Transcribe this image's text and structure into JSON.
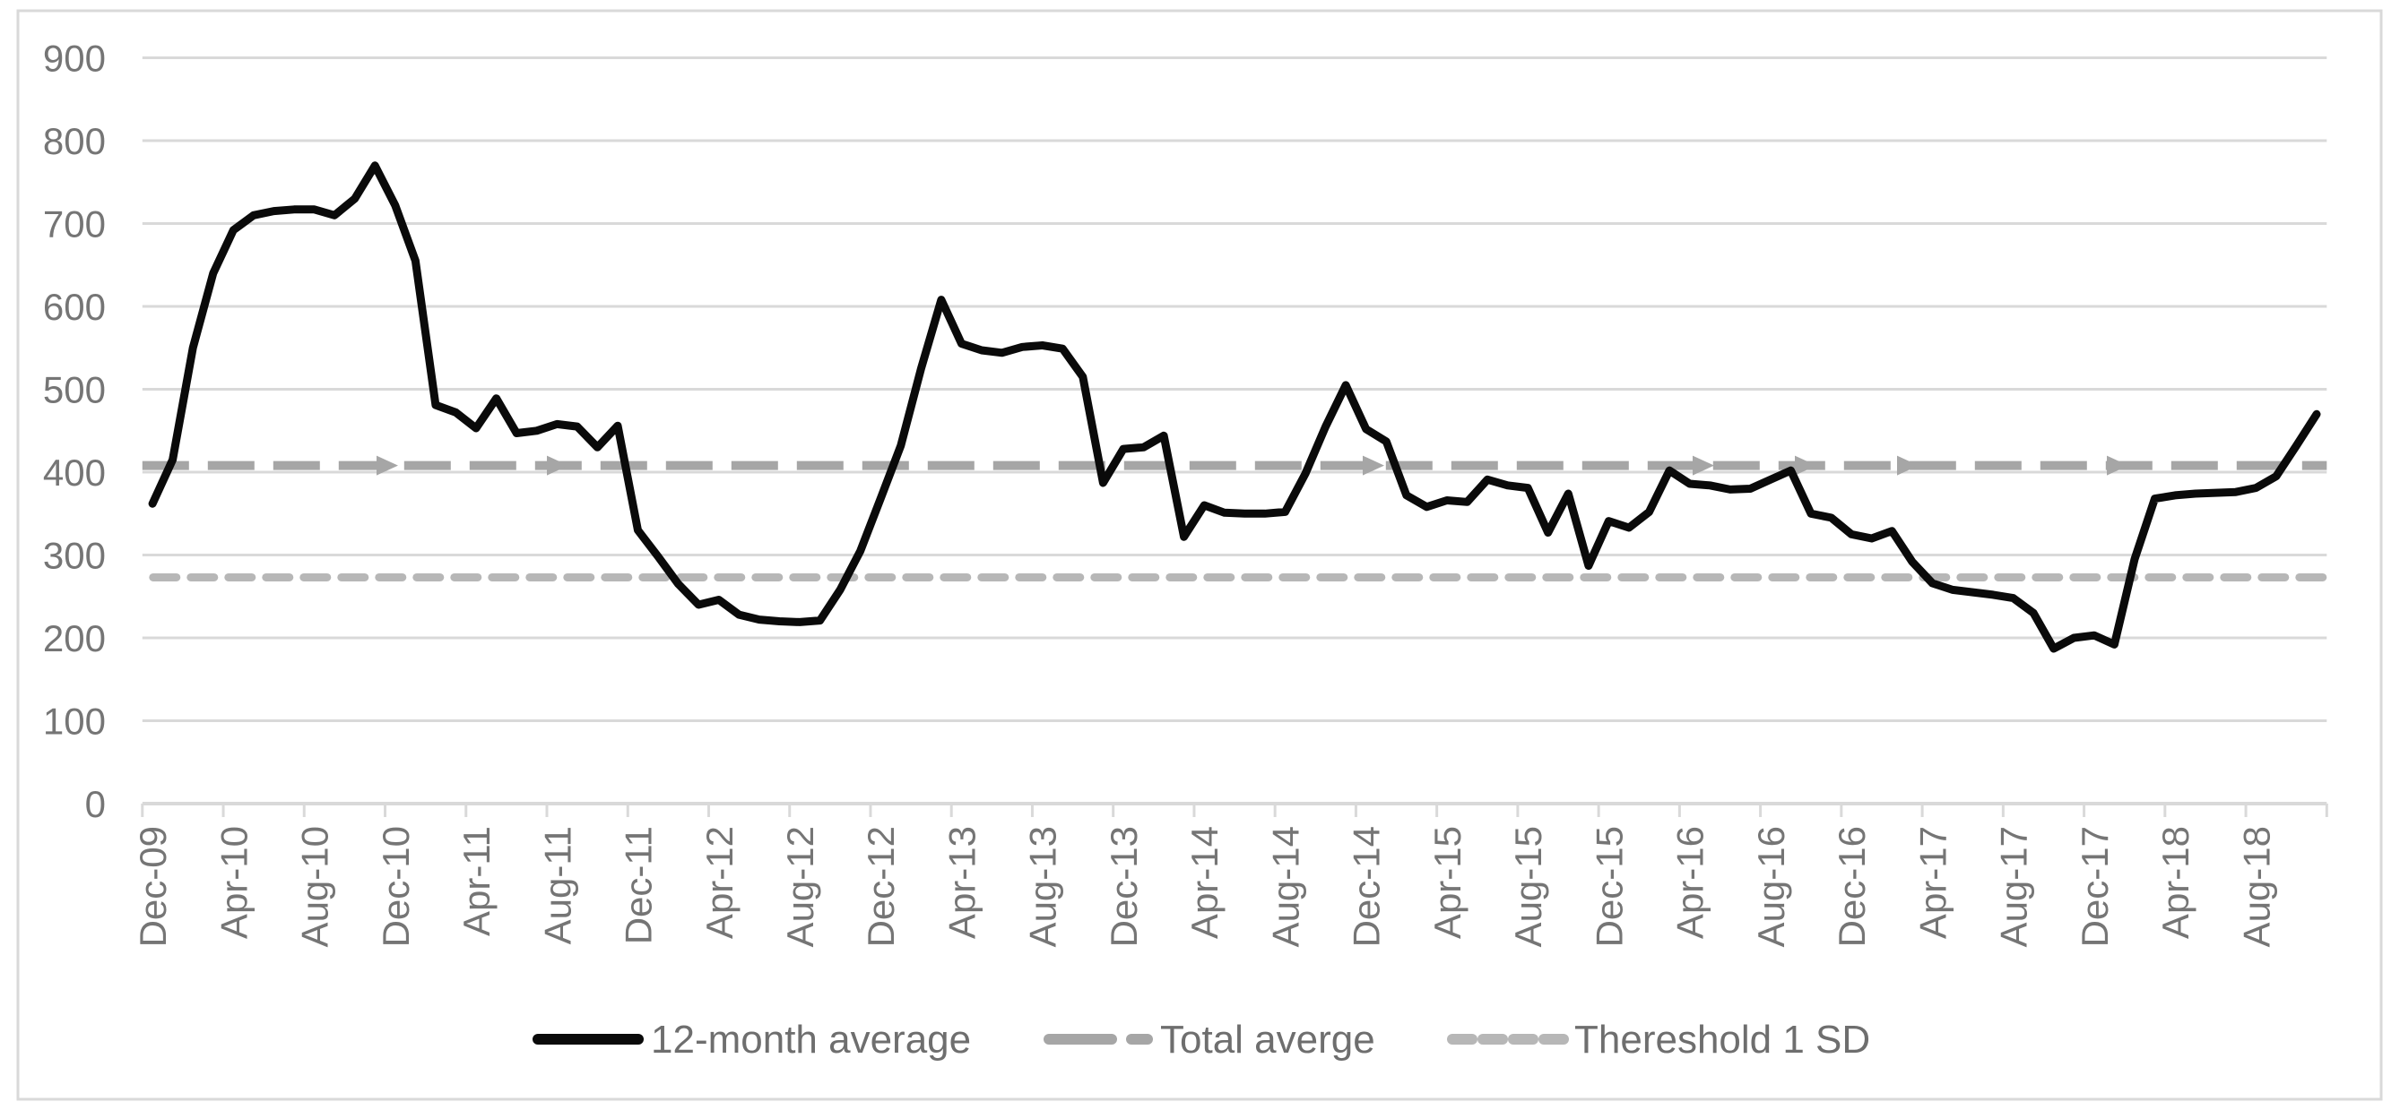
{
  "chart_data": {
    "type": "line",
    "title": "",
    "xlabel": "",
    "ylabel": "",
    "ylim": [
      0,
      900
    ],
    "ytick_step": 100,
    "y_tick_labels": [
      "0",
      "100",
      "200",
      "300",
      "400",
      "500",
      "600",
      "700",
      "800",
      "900"
    ],
    "x_tick_labels": [
      "Dec-09",
      "Apr-10",
      "Aug-10",
      "Dec-10",
      "Apr-11",
      "Aug-11",
      "Dec-11",
      "Apr-12",
      "Aug-12",
      "Dec-12",
      "Apr-13",
      "Aug-13",
      "Dec-13",
      "Apr-14",
      "Aug-14",
      "Dec-14",
      "Apr-15",
      "Aug-15",
      "Dec-15",
      "Apr-16",
      "Aug-16",
      "Dec-16",
      "Apr-17",
      "Aug-17",
      "Dec-17",
      "Apr-18",
      "Aug-18"
    ],
    "grid": "horizontal-only",
    "legend_position": "bottom-center",
    "months": [
      "Dec-09",
      "Jan-10",
      "Feb-10",
      "Mar-10",
      "Apr-10",
      "May-10",
      "Jun-10",
      "Jul-10",
      "Aug-10",
      "Sep-10",
      "Oct-10",
      "Nov-10",
      "Dec-10",
      "Jan-11",
      "Feb-11",
      "Mar-11",
      "Apr-11",
      "May-11",
      "Jun-11",
      "Jul-11",
      "Aug-11",
      "Sep-11",
      "Oct-11",
      "Nov-11",
      "Dec-11",
      "Jan-12",
      "Feb-12",
      "Mar-12",
      "Apr-12",
      "May-12",
      "Jun-12",
      "Jul-12",
      "Aug-12",
      "Sep-12",
      "Oct-12",
      "Nov-12",
      "Dec-12",
      "Jan-13",
      "Feb-13",
      "Mar-13",
      "Apr-13",
      "May-13",
      "Jun-13",
      "Jul-13",
      "Aug-13",
      "Sep-13",
      "Oct-13",
      "Nov-13",
      "Dec-13",
      "Jan-14",
      "Feb-14",
      "Mar-14",
      "Apr-14",
      "May-14",
      "Jun-14",
      "Jul-14",
      "Aug-14",
      "Sep-14",
      "Oct-14",
      "Nov-14",
      "Dec-14",
      "Jan-15",
      "Feb-15",
      "Mar-15",
      "Apr-15",
      "May-15",
      "Jun-15",
      "Jul-15",
      "Aug-15",
      "Sep-15",
      "Oct-15",
      "Nov-15",
      "Dec-15",
      "Jan-16",
      "Feb-16",
      "Mar-16",
      "Apr-16",
      "May-16",
      "Jun-16",
      "Jul-16",
      "Aug-16",
      "Sep-16",
      "Oct-16",
      "Nov-16",
      "Dec-16",
      "Jan-17",
      "Feb-17",
      "Mar-17",
      "Apr-17",
      "May-17",
      "Jun-17",
      "Jul-17",
      "Aug-17",
      "Sep-17",
      "Oct-17",
      "Nov-17",
      "Dec-17",
      "Jan-18",
      "Feb-18",
      "Mar-18",
      "Apr-18",
      "May-18",
      "Jun-18",
      "Jul-18",
      "Aug-18",
      "Sep-18",
      "Oct-18",
      "Nov-18"
    ],
    "series": [
      {
        "name": "12-month average",
        "style": "solid",
        "color": "#0a0a0a",
        "values": [
          362,
          415,
          550,
          640,
          692,
          710,
          715,
          717,
          717,
          710,
          730,
          770,
          722,
          655,
          481,
          472,
          453,
          489,
          447,
          450,
          458,
          455,
          430,
          456,
          330,
          298,
          265,
          240,
          246,
          228,
          222,
          220,
          219,
          221,
          258,
          305,
          368,
          432,
          525,
          608,
          555,
          547,
          544,
          551,
          553,
          549,
          515,
          387,
          428,
          430,
          444,
          322,
          360,
          351,
          350,
          350,
          352,
          398,
          455,
          505,
          452,
          437,
          372,
          358,
          366,
          364,
          391,
          384,
          381,
          327,
          374,
          287,
          341,
          333,
          352,
          402,
          386,
          384,
          379,
          380,
          391,
          402,
          350,
          345,
          325,
          320,
          329,
          292,
          266,
          258,
          255,
          252,
          248,
          230,
          187,
          200,
          203,
          192,
          295,
          368,
          372,
          374,
          375,
          376,
          381,
          395,
          432,
          470
        ]
      },
      {
        "name": "Total averge",
        "style": "long-dash",
        "color": "#a6a6a6",
        "constant": 408,
        "arrow_marks_x": [
          420,
          610,
          1520,
          1888,
          2002,
          2116,
          2350
        ]
      },
      {
        "name": "Thereshold 1 SD",
        "style": "short-dash",
        "color": "#b7b7b7",
        "constant": 273
      }
    ]
  },
  "colors": {
    "background": "#ffffff",
    "border": "#d9d9d9",
    "gridline": "#d9d9d9",
    "axis": "#d9d9d9",
    "tick_label": "#757575",
    "legend_text": "#6e6e6e"
  }
}
